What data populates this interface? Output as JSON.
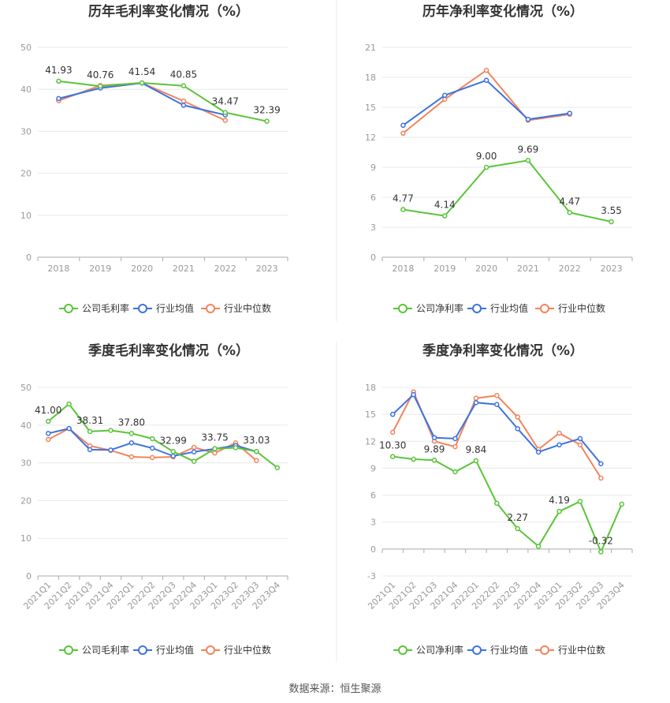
{
  "colors": {
    "company": "#5ac43a",
    "avg": "#3d72e0",
    "median": "#f2845c",
    "grid": "#e8e8e8",
    "axis": "#aaaaaa"
  },
  "source": "数据来源：恒生聚源",
  "chart_data": [
    {
      "type": "line",
      "title": "历年毛利率变化情况（%）",
      "categories": [
        "2018",
        "2019",
        "2020",
        "2021",
        "2022",
        "2023"
      ],
      "ylim": [
        0,
        50
      ],
      "yticks": [
        0,
        10,
        20,
        30,
        40,
        50
      ],
      "rotate_x": false,
      "series": [
        {
          "name": "公司毛利率",
          "values": [
            41.93,
            40.76,
            41.54,
            40.85,
            34.47,
            32.39
          ]
        },
        {
          "name": "行业均值",
          "values": [
            37.8,
            40.3,
            41.5,
            36.2,
            33.9,
            null
          ]
        },
        {
          "name": "行业中位数",
          "values": [
            37.3,
            40.9,
            41.5,
            37.2,
            32.6,
            null
          ]
        }
      ],
      "labels": [
        "41.93",
        "40.76",
        "41.54",
        "40.85",
        "34.47",
        "32.39"
      ]
    },
    {
      "type": "line",
      "title": "历年净利率变化情况（%）",
      "categories": [
        "2018",
        "2019",
        "2020",
        "2021",
        "2022",
        "2023"
      ],
      "ylim": [
        0,
        21
      ],
      "yticks": [
        0,
        3,
        6,
        9,
        12,
        15,
        18,
        21
      ],
      "rotate_x": false,
      "series": [
        {
          "name": "公司净利率",
          "values": [
            4.77,
            4.14,
            9.0,
            9.69,
            4.47,
            3.55
          ]
        },
        {
          "name": "行业均值",
          "values": [
            13.2,
            16.2,
            17.7,
            13.8,
            14.4,
            null
          ]
        },
        {
          "name": "行业中位数",
          "values": [
            12.4,
            15.8,
            18.7,
            13.7,
            14.3,
            null
          ]
        }
      ],
      "labels": [
        "4.77",
        "4.14",
        "9.00",
        "9.69",
        "4.47",
        "3.55"
      ]
    },
    {
      "type": "line",
      "title": "季度毛利率变化情况（%）",
      "categories": [
        "2021Q1",
        "2021Q2",
        "2021Q3",
        "2021Q4",
        "2022Q1",
        "2022Q2",
        "2022Q3",
        "2022Q4",
        "2023Q1",
        "2023Q2",
        "2023Q3",
        "2023Q4"
      ],
      "ylim": [
        0,
        50
      ],
      "yticks": [
        0,
        10,
        20,
        30,
        40,
        50
      ],
      "rotate_x": true,
      "series": [
        {
          "name": "公司毛利率",
          "values": [
            41.0,
            45.6,
            38.31,
            38.6,
            37.8,
            36.4,
            32.99,
            30.4,
            33.75,
            34.0,
            33.03,
            28.7
          ]
        },
        {
          "name": "行业均值",
          "values": [
            37.8,
            39.1,
            33.5,
            33.4,
            35.3,
            33.9,
            31.8,
            32.9,
            33.7,
            34.6,
            33.0,
            null
          ]
        },
        {
          "name": "行业中位数",
          "values": [
            36.2,
            39.1,
            34.5,
            33.3,
            31.6,
            31.4,
            31.6,
            34.1,
            32.6,
            35.3,
            30.6,
            null
          ]
        }
      ],
      "labels": [
        "41.00",
        "",
        "38.31",
        "",
        "37.80",
        "",
        "32.99",
        "",
        "33.75",
        "",
        "33.03",
        ""
      ]
    },
    {
      "type": "line",
      "title": "季度净利率变化情况（%）",
      "categories": [
        "2021Q1",
        "2021Q2",
        "2021Q3",
        "2021Q4",
        "2022Q1",
        "2022Q2",
        "2022Q3",
        "2022Q4",
        "2023Q1",
        "2023Q2",
        "2023Q3",
        "2023Q4"
      ],
      "ylim": [
        -3,
        18
      ],
      "yticks": [
        -3,
        0,
        3,
        6,
        9,
        12,
        15,
        18
      ],
      "rotate_x": true,
      "series": [
        {
          "name": "公司净利率",
          "values": [
            10.3,
            10.0,
            9.89,
            8.6,
            9.84,
            5.1,
            2.27,
            0.3,
            4.19,
            5.3,
            -0.32,
            5.0
          ]
        },
        {
          "name": "行业均值",
          "values": [
            15.0,
            17.2,
            12.4,
            12.3,
            16.3,
            16.1,
            13.4,
            10.8,
            11.6,
            12.3,
            9.5,
            null
          ]
        },
        {
          "name": "行业中位数",
          "values": [
            13.0,
            17.5,
            12.0,
            11.4,
            16.8,
            17.1,
            14.7,
            11.1,
            12.9,
            11.6,
            7.9,
            null
          ]
        }
      ],
      "labels": [
        "10.30",
        "",
        "9.89",
        "",
        "9.84",
        "",
        "2.27",
        "",
        "4.19",
        "",
        "-0.32",
        ""
      ]
    }
  ]
}
